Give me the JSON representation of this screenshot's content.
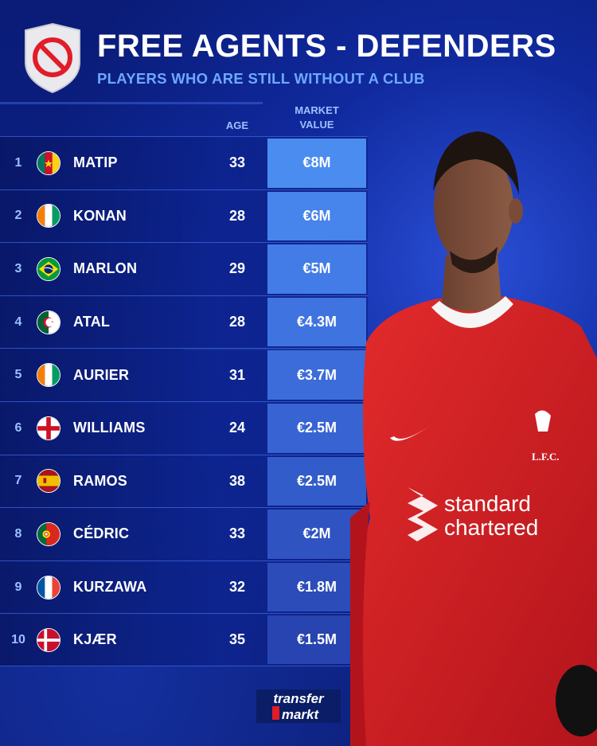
{
  "header": {
    "title": "FREE AGENTS - DEFENDERS",
    "subtitle": "PLAYERS WHO ARE STILL WITHOUT A CLUB",
    "badge_icon": "no-entry-icon"
  },
  "columns": {
    "age": "AGE",
    "market_value_line1": "MARKET",
    "market_value_line2": "VALUE"
  },
  "players": [
    {
      "rank": "1",
      "name": "MATIP",
      "age": "33",
      "value": "€8M",
      "flag": "cameroon-flag-icon",
      "value_color": "#4b8cf0"
    },
    {
      "rank": "2",
      "name": "KONAN",
      "age": "28",
      "value": "€6M",
      "flag": "ivory-coast-flag-icon",
      "value_color": "#4784ec"
    },
    {
      "rank": "3",
      "name": "MARLON",
      "age": "29",
      "value": "€5M",
      "flag": "brazil-flag-icon",
      "value_color": "#437ce6"
    },
    {
      "rank": "4",
      "name": "ATAL",
      "age": "28",
      "value": "€4.3M",
      "flag": "algeria-flag-icon",
      "value_color": "#3f74e0"
    },
    {
      "rank": "5",
      "name": "AURIER",
      "age": "31",
      "value": "€3.7M",
      "flag": "ivory-coast-flag-icon",
      "value_color": "#3b6cda"
    },
    {
      "rank": "6",
      "name": "WILLIAMS",
      "age": "24",
      "value": "€2.5M",
      "flag": "england-flag-icon",
      "value_color": "#3764d2"
    },
    {
      "rank": "7",
      "name": "RAMOS",
      "age": "38",
      "value": "€2.5M",
      "flag": "spain-flag-icon",
      "value_color": "#335ccb"
    },
    {
      "rank": "8",
      "name": "CÉDRIC",
      "age": "33",
      "value": "€2M",
      "flag": "portugal-flag-icon",
      "value_color": "#2f54c2"
    },
    {
      "rank": "9",
      "name": "KURZAWA",
      "age": "32",
      "value": "€1.8M",
      "flag": "france-flag-icon",
      "value_color": "#2b4cb9"
    },
    {
      "rank": "10",
      "name": "KJÆR",
      "age": "35",
      "value": "€1.5M",
      "flag": "denmark-flag-icon",
      "value_color": "#2744b0"
    }
  ],
  "player_photo": {
    "shirt_sponsor_line1": "standard",
    "shirt_sponsor_line2": "chartered",
    "club_crest_text": "L.F.C."
  },
  "branding": {
    "logo_line1": "transfer",
    "logo_line2": "markt"
  }
}
